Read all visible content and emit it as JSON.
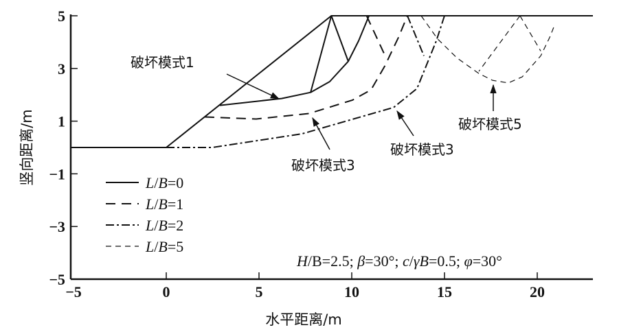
{
  "chart_data": {
    "type": "line",
    "xlabel": "水平距离/m",
    "ylabel": "竖向距离/m",
    "xlim": [
      -5.15,
      23
    ],
    "ylim": [
      -5,
      5
    ],
    "xticks": [
      -5,
      0,
      5,
      10,
      15,
      20
    ],
    "yticks": [
      5,
      3,
      1,
      -1,
      -3,
      -5
    ],
    "xtick_labels": [
      "−5",
      "0",
      "5",
      "10",
      "15",
      "20"
    ],
    "ytick_labels": [
      "5",
      "3",
      "1",
      "−1",
      "−3",
      "−5"
    ],
    "slope_profile": [
      [
        -5.15,
        0
      ],
      [
        0,
        0
      ],
      [
        8.9,
        5
      ],
      [
        23,
        5
      ]
    ],
    "series": [
      {
        "name": "L/B=0",
        "style": "solid",
        "curves": [
          [
            [
              2.89,
              1.6
            ],
            [
              6.22,
              1.86
            ],
            [
              7.78,
              2.09
            ],
            [
              8.81,
              2.5
            ],
            [
              9.81,
              3.27
            ],
            [
              10.37,
              4.05
            ],
            [
              10.93,
              5.0
            ]
          ],
          [
            [
              8.9,
              5
            ],
            [
              7.78,
              2.09
            ]
          ],
          [
            [
              8.9,
              5
            ],
            [
              9.81,
              3.27
            ]
          ]
        ]
      },
      {
        "name": "L/B=1",
        "style": "dash",
        "curves": [
          [
            [
              2.07,
              1.16
            ],
            [
              4.85,
              1.08
            ],
            [
              7.7,
              1.29
            ],
            [
              10.04,
              1.8
            ],
            [
              11.04,
              2.19
            ],
            [
              11.78,
              3.09
            ],
            [
              12.52,
              4.18
            ],
            [
              13.0,
              5
            ]
          ],
          [
            [
              10.8,
              5
            ],
            [
              11.85,
              3.4
            ]
          ]
        ]
      },
      {
        "name": "L/B=2",
        "style": "dashdot",
        "curves": [
          [
            [
              0,
              0
            ],
            [
              2.48,
              0
            ],
            [
              7.33,
              0.52
            ],
            [
              12.26,
              1.52
            ],
            [
              13.52,
              2.24
            ],
            [
              14.11,
              3.27
            ],
            [
              14.56,
              4.05
            ],
            [
              15.0,
              5
            ]
          ],
          [
            [
              13.0,
              5
            ],
            [
              13.89,
              3.48
            ]
          ]
        ]
      },
      {
        "name": "L/B=5",
        "style": "shortdash",
        "curves": [
          [
            [
              13.74,
              5
            ],
            [
              14.63,
              4.12
            ],
            [
              15.67,
              3.4
            ],
            [
              16.85,
              2.81
            ],
            [
              17.59,
              2.55
            ],
            [
              18.44,
              2.45
            ],
            [
              19.19,
              2.68
            ],
            [
              20.19,
              3.48
            ],
            [
              20.67,
              4.18
            ],
            [
              20.96,
              4.69
            ]
          ],
          [
            [
              19.07,
              5
            ],
            [
              16.85,
              2.89
            ]
          ],
          [
            [
              19.07,
              5
            ],
            [
              20.19,
              3.66
            ]
          ]
        ]
      }
    ],
    "legend": {
      "placement": "lower-left",
      "entries": [
        {
          "l": "L",
          "slash": "/",
          "b": "B",
          "rest": "=0"
        },
        {
          "l": "L",
          "slash": "/",
          "b": "B",
          "rest": "=1"
        },
        {
          "l": "L",
          "slash": "/",
          "b": "B",
          "rest": "=2"
        },
        {
          "l": "L",
          "slash": "/",
          "b": "B",
          "rest": "=5"
        }
      ]
    },
    "annotations": [
      {
        "text": "破坏模式1",
        "target": [
          6.22,
          1.86
        ]
      },
      {
        "text": "破坏模式3",
        "target": [
          7.7,
          1.29
        ]
      },
      {
        "text": "破坏模式3",
        "target": [
          12.26,
          1.52
        ]
      },
      {
        "text": "破坏模式5",
        "target": [
          17.59,
          2.55
        ]
      }
    ],
    "params": {
      "h": "H",
      "b1": "/B=2.5; ",
      "beta": "β",
      "beta_val": "=30°; ",
      "c": "c",
      "c_mid": "/",
      "gamma": "γB",
      "c_val": "=0.5; ",
      "phi": "φ",
      "phi_val": "=30°"
    }
  }
}
